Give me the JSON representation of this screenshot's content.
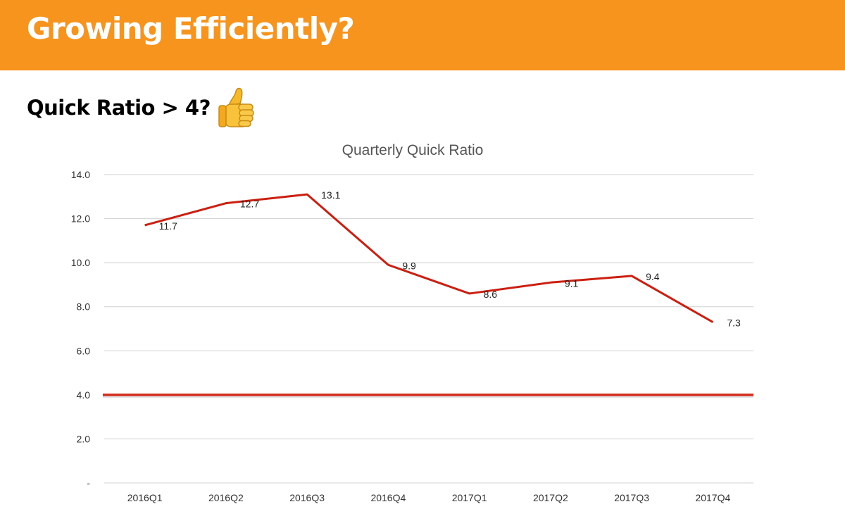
{
  "slide": {
    "title": "Growing Efficiently?",
    "subtitle": "Quick Ratio > 4?",
    "emoji_icon": "thumbs-up-icon",
    "header_color": "#f7941d"
  },
  "chart_data": {
    "type": "line",
    "title": "Quarterly Quick Ratio",
    "xlabel": "",
    "ylabel": "",
    "categories": [
      "2016Q1",
      "2016Q2",
      "2016Q3",
      "2016Q4",
      "2017Q1",
      "2017Q2",
      "2017Q3",
      "2017Q4"
    ],
    "series": [
      {
        "values": [
          11.7,
          12.7,
          13.1,
          9.9,
          8.6,
          9.1,
          9.4,
          7.3
        ],
        "labels": [
          "11.7",
          "12.7",
          "13.1",
          "9.9",
          "8.6",
          "9.1",
          "9.4",
          "7.3"
        ],
        "color": "#cc1f10"
      }
    ],
    "reference_line": {
      "value": 4.0,
      "color": "#d42a1c"
    },
    "ylim": [
      0,
      14
    ],
    "yticks": [
      "-",
      "2.0",
      "4.0",
      "6.0",
      "8.0",
      "10.0",
      "12.0",
      "14.0"
    ],
    "grid": true,
    "legend": "none"
  }
}
